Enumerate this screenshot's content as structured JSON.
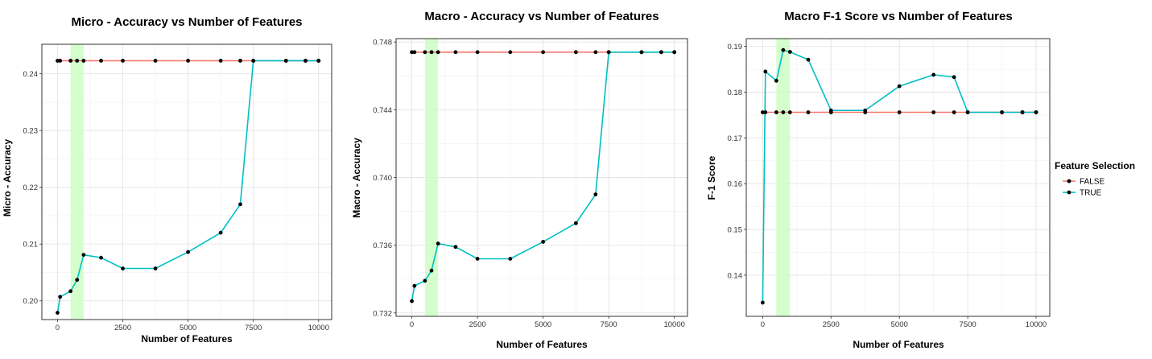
{
  "chart_data": [
    {
      "type": "line",
      "title": "Micro - Accuracy vs Number of Features",
      "xlabel": "Number of Features",
      "ylabel": "Micro - Accuracy",
      "xlim": [
        -600,
        10500
      ],
      "ylim": [
        0.1967,
        0.2452
      ],
      "xticks": [
        0,
        2500,
        5000,
        7500,
        10000
      ],
      "xtick_labels": [
        "0",
        "2500",
        "5000",
        "7500",
        "10000"
      ],
      "yticks": [
        0.2,
        0.21,
        0.22,
        0.23,
        0.24
      ],
      "ytick_labels": [
        "0.20",
        "0.21",
        "0.22",
        "0.23",
        "0.24"
      ],
      "highlight_x": [
        500,
        1000
      ],
      "grid": true,
      "series": [
        {
          "name": "FALSE",
          "color": "#F8766D",
          "x": [
            0,
            100,
            500,
            750,
            1000,
            1667,
            2500,
            3750,
            5000,
            6250,
            7000,
            7500,
            8750,
            9500,
            10000
          ],
          "y": [
            0.2423,
            0.2423,
            0.2423,
            0.2423,
            0.2423,
            0.2423,
            0.2423,
            0.2423,
            0.2423,
            0.2423,
            0.2423,
            0.2423,
            0.2423,
            0.2423,
            0.2423
          ]
        },
        {
          "name": "TRUE",
          "color": "#00BFC4",
          "x": [
            0,
            100,
            500,
            750,
            1000,
            1667,
            2500,
            3750,
            5000,
            6250,
            7000,
            7500,
            8750,
            9500,
            10000
          ],
          "y": [
            0.1979,
            0.2007,
            0.2017,
            0.2037,
            0.2081,
            0.2076,
            0.2057,
            0.2057,
            0.2086,
            0.212,
            0.217,
            0.2423,
            0.2423,
            0.2423,
            0.2423
          ]
        }
      ]
    },
    {
      "type": "line",
      "title": "Macro - Accuracy vs Number of Features",
      "xlabel": "Number of Features",
      "ylabel": "Macro - Accuracy",
      "xlim": [
        -600,
        10500
      ],
      "ylim": [
        0.7318,
        0.7482
      ],
      "xticks": [
        0,
        2500,
        5000,
        7500,
        10000
      ],
      "xtick_labels": [
        "0",
        "2500",
        "5000",
        "7500",
        "10000"
      ],
      "yticks": [
        0.732,
        0.736,
        0.74,
        0.744,
        0.748
      ],
      "ytick_labels": [
        "0.732",
        "0.736",
        "0.740",
        "0.744",
        "0.748"
      ],
      "highlight_x": [
        500,
        1000
      ],
      "grid": true,
      "series": [
        {
          "name": "FALSE",
          "color": "#F8766D",
          "x": [
            0,
            100,
            500,
            750,
            1000,
            1667,
            2500,
            3750,
            5000,
            6250,
            7000,
            7500,
            8750,
            9500,
            10000
          ],
          "y": [
            0.7474,
            0.7474,
            0.7474,
            0.7474,
            0.7474,
            0.7474,
            0.7474,
            0.7474,
            0.7474,
            0.7474,
            0.7474,
            0.7474,
            0.7474,
            0.7474,
            0.7474
          ]
        },
        {
          "name": "TRUE",
          "color": "#00BFC4",
          "x": [
            0,
            100,
            500,
            750,
            1000,
            1667,
            2500,
            3750,
            5000,
            6250,
            7000,
            7500,
            8750,
            9500,
            10000
          ],
          "y": [
            0.7327,
            0.7336,
            0.7339,
            0.7345,
            0.7361,
            0.7359,
            0.7352,
            0.7352,
            0.7362,
            0.7373,
            0.739,
            0.7474,
            0.7474,
            0.7474,
            0.7474
          ]
        }
      ]
    },
    {
      "type": "line",
      "title": "Macro F-1 Score vs Number of Features",
      "xlabel": "Number of Features",
      "ylabel": "F-1 Score",
      "xlim": [
        -600,
        10500
      ],
      "ylim": [
        0.131,
        0.1917
      ],
      "xticks": [
        0,
        2500,
        5000,
        7500,
        10000
      ],
      "xtick_labels": [
        "0",
        "2500",
        "5000",
        "7500",
        "10000"
      ],
      "yticks": [
        0.14,
        0.15,
        0.16,
        0.17,
        0.18,
        0.19
      ],
      "ytick_labels": [
        "0.14",
        "0.15",
        "0.16",
        "0.17",
        "0.18",
        "0.19"
      ],
      "highlight_x": [
        500,
        1000
      ],
      "grid": true,
      "series": [
        {
          "name": "FALSE",
          "color": "#F8766D",
          "x": [
            0,
            100,
            500,
            750,
            1000,
            1667,
            2500,
            3750,
            5000,
            6250,
            7000,
            7500,
            8750,
            9500,
            10000
          ],
          "y": [
            0.1756,
            0.1756,
            0.1756,
            0.1756,
            0.1756,
            0.1756,
            0.1756,
            0.1756,
            0.1756,
            0.1756,
            0.1756,
            0.1756,
            0.1756,
            0.1756,
            0.1756
          ]
        },
        {
          "name": "TRUE",
          "color": "#00BFC4",
          "x": [
            0,
            100,
            500,
            750,
            1000,
            1667,
            2500,
            3750,
            5000,
            6250,
            7000,
            7500,
            8750,
            9500,
            10000
          ],
          "y": [
            0.134,
            0.1845,
            0.1825,
            0.1892,
            0.1888,
            0.1871,
            0.176,
            0.176,
            0.1813,
            0.1838,
            0.1833,
            0.1756,
            0.1756,
            0.1756,
            0.1756
          ]
        }
      ]
    }
  ],
  "legend": {
    "title": "Feature Selection",
    "placement": "right",
    "items": [
      {
        "label": "FALSE",
        "color": "#F8766D"
      },
      {
        "label": "TRUE",
        "color": "#00BFC4"
      }
    ]
  }
}
